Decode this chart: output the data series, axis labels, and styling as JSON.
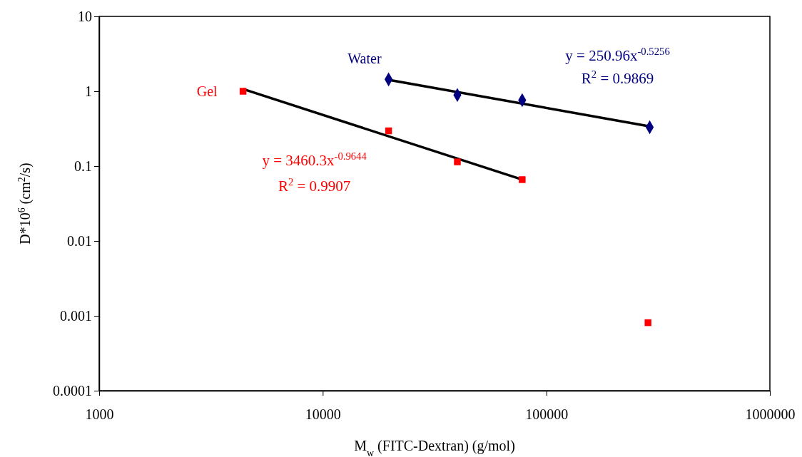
{
  "chart_data": {
    "type": "scatter",
    "xlabel": "M$_{w}$ (FITC-Dextran) (g/mol)",
    "ylabel": "D*10$^{6}$ (cm$^{2}$/s)",
    "log": "xy",
    "xlim": [
      1000,
      1000000
    ],
    "xticks": [
      1000,
      10000,
      100000,
      1000000
    ],
    "ylim": [
      0.0001,
      10
    ],
    "yticks": [
      0.0001,
      0.001,
      0.01,
      0.1,
      1,
      10
    ],
    "grid": false,
    "series": [
      {
        "name": "Water",
        "color": "#000080",
        "marker": "diamond",
        "x": [
          19700,
          40000,
          78000,
          290000
        ],
        "values": [
          1.44,
          0.89,
          0.76,
          0.33
        ]
      },
      {
        "name": "Gel",
        "color": "#ff0000",
        "marker": "square",
        "x": [
          4400,
          19700,
          40000,
          78000,
          285000
        ],
        "values": [
          1.0,
          0.296,
          0.114,
          0.066,
          0.00081
        ]
      },
      {
        "type": "line",
        "color": "#000000",
        "marker": "none",
        "x": [
          19700,
          290000
        ],
        "values": [
          1.42,
          0.34
        ]
      },
      {
        "type": "line",
        "color": "#000000",
        "marker": "none",
        "x": [
          4400,
          78000
        ],
        "values": [
          1.07,
          0.066
        ]
      }
    ],
    "annotations": [
      "y = 250.96x$^{-0.5256}$",
      "R$^{2}$ = 0.9869",
      "y = 3460.3x$^{-0.9644}$",
      "R$^{2}$ = 0.9907"
    ]
  }
}
